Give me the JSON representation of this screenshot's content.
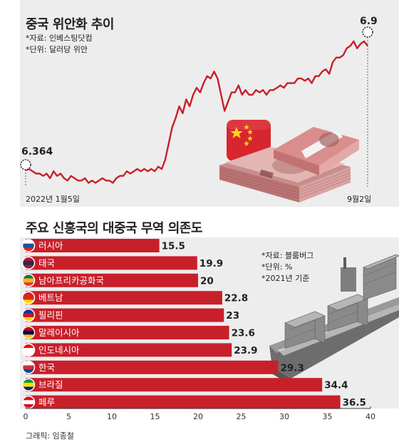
{
  "line_chart": {
    "title": "중국 위안화 추이",
    "source_note": "*자료: 인베스팅닷컴",
    "unit_note": "*단위: 달러당 위안",
    "start_label": "2022년 1월5일",
    "end_label": "9월2일",
    "start_value_label": "6.364",
    "end_value_label": "6.9",
    "colors": {
      "line": "#c8202a",
      "panel": "#ededed"
    }
  },
  "bar_chart": {
    "title": "주요 신흥국의 대중국 무역 의존도",
    "source_note": "*자료: 블룸버그",
    "unit_note": "*단위: %",
    "year_note": "*2021년 기준",
    "colors": {
      "bar": "#c8202a",
      "panel": "#ededed"
    }
  },
  "credit": "그래픽: 임종철",
  "chart_data": [
    {
      "type": "line",
      "title": "중국 위안화 추이",
      "ylabel": "달러당 위안",
      "x_labels": [
        "2022년 1월5일",
        "9월2일"
      ],
      "ylim": [
        6.33,
        6.96
      ],
      "grid": false,
      "series": [
        {
          "values": [
            6.364,
            6.37,
            6.36,
            6.35,
            6.35,
            6.34,
            6.35,
            6.33,
            6.36,
            6.34,
            6.35,
            6.33,
            6.32,
            6.34,
            6.33,
            6.32,
            6.32,
            6.33,
            6.31,
            6.32,
            6.31,
            6.32,
            6.33,
            6.32,
            6.32,
            6.31,
            6.33,
            6.34,
            6.34,
            6.36,
            6.35,
            6.36,
            6.37,
            6.36,
            6.37,
            6.36,
            6.37,
            6.36,
            6.38,
            6.37,
            6.41,
            6.48,
            6.55,
            6.59,
            6.64,
            6.61,
            6.67,
            6.64,
            6.69,
            6.72,
            6.7,
            6.74,
            6.77,
            6.76,
            6.79,
            6.76,
            6.69,
            6.62,
            6.66,
            6.7,
            6.7,
            6.73,
            6.69,
            6.71,
            6.69,
            6.69,
            6.71,
            6.7,
            6.71,
            6.69,
            6.71,
            6.71,
            6.72,
            6.73,
            6.72,
            6.74,
            6.74,
            6.74,
            6.76,
            6.76,
            6.75,
            6.76,
            6.74,
            6.77,
            6.77,
            6.79,
            6.8,
            6.78,
            6.83,
            6.85,
            6.85,
            6.86,
            6.89,
            6.9,
            6.92,
            6.89,
            6.91,
            6.92,
            6.9
          ]
        }
      ],
      "annotations": [
        "6.364",
        "6.9"
      ]
    },
    {
      "type": "bar",
      "orientation": "horizontal",
      "title": "주요 신흥국의 대중국 무역 의존도",
      "categories": [
        "러시아",
        "태국",
        "남아프리카공화국",
        "베트남",
        "필리핀",
        "말레이시아",
        "인도네시아",
        "한국",
        "브라질",
        "페루"
      ],
      "values": [
        15.5,
        19.9,
        20,
        22.8,
        23,
        23.6,
        23.9,
        29.3,
        34.4,
        36.5
      ],
      "value_labels": [
        "15.5",
        "19.9",
        "20",
        "22.8",
        "23",
        "23.6",
        "23.9",
        "29.3",
        "34.4",
        "36.5"
      ],
      "xlim": [
        0,
        40
      ],
      "xticks": [
        "0",
        "5",
        "10",
        "15",
        "20",
        "25",
        "30",
        "35",
        "40"
      ],
      "ylabel": "%",
      "grid": false,
      "legend": "none"
    }
  ]
}
